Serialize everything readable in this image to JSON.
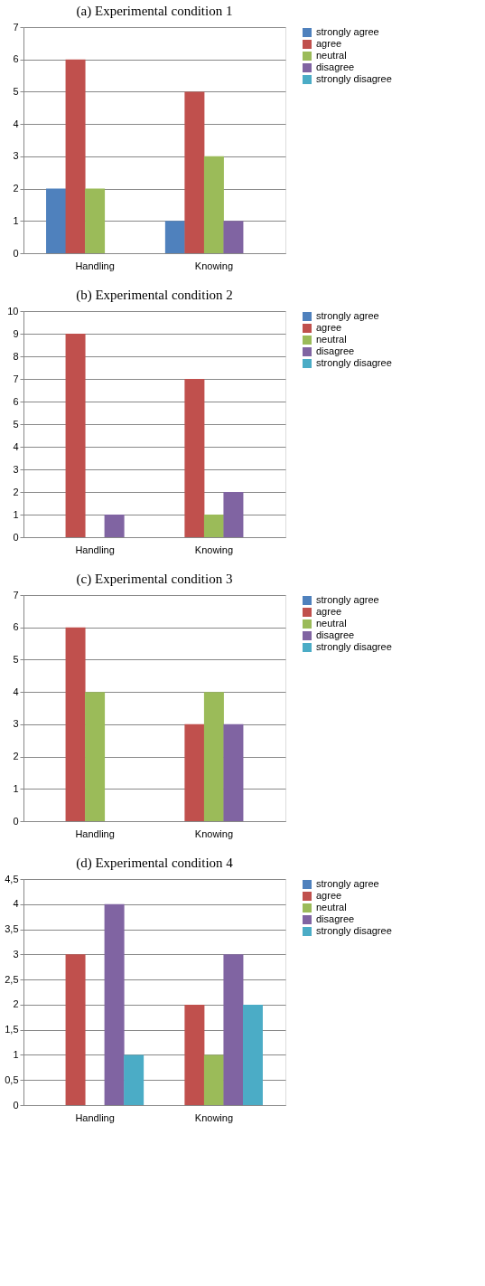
{
  "chart_data": [
    {
      "type": "bar",
      "title": "(a) Experimental condition 1",
      "categories": [
        "Handling",
        "Knowing"
      ],
      "ylim": [
        0,
        7
      ],
      "yticks": [
        0,
        1,
        2,
        3,
        4,
        5,
        6,
        7
      ],
      "grid": "y",
      "legend": "right",
      "series": [
        {
          "name": "strongly agree",
          "color": "#4f81bd",
          "values": [
            2,
            1
          ]
        },
        {
          "name": "agree",
          "color": "#c0504d",
          "values": [
            6,
            5
          ]
        },
        {
          "name": "neutral",
          "color": "#9bbb59",
          "values": [
            2,
            3
          ]
        },
        {
          "name": "disagree",
          "color": "#8064a2",
          "values": [
            0,
            1
          ]
        },
        {
          "name": "strongly disagree",
          "color": "#4bacc6",
          "values": [
            0,
            0
          ]
        }
      ]
    },
    {
      "type": "bar",
      "title": "(b) Experimental condition 2",
      "categories": [
        "Handling",
        "Knowing"
      ],
      "ylim": [
        0,
        10
      ],
      "yticks": [
        0,
        1,
        2,
        3,
        4,
        5,
        6,
        7,
        8,
        9,
        10
      ],
      "grid": "y",
      "legend": "right",
      "series": [
        {
          "name": "strongly agree",
          "color": "#4f81bd",
          "values": [
            0,
            0
          ]
        },
        {
          "name": "agree",
          "color": "#c0504d",
          "values": [
            9,
            7
          ]
        },
        {
          "name": "neutral",
          "color": "#9bbb59",
          "values": [
            0,
            1
          ]
        },
        {
          "name": "disagree",
          "color": "#8064a2",
          "values": [
            1,
            2
          ]
        },
        {
          "name": "strongly disagree",
          "color": "#4bacc6",
          "values": [
            0,
            0
          ]
        }
      ]
    },
    {
      "type": "bar",
      "title": "(c) Experimental condition 3",
      "categories": [
        "Handling",
        "Knowing"
      ],
      "ylim": [
        0,
        7
      ],
      "yticks": [
        0,
        1,
        2,
        3,
        4,
        5,
        6,
        7
      ],
      "grid": "y",
      "legend": "right",
      "series": [
        {
          "name": "strongly agree",
          "color": "#4f81bd",
          "values": [
            0,
            0
          ]
        },
        {
          "name": "agree",
          "color": "#c0504d",
          "values": [
            6,
            3
          ]
        },
        {
          "name": "neutral",
          "color": "#9bbb59",
          "values": [
            4,
            4
          ]
        },
        {
          "name": "disagree",
          "color": "#8064a2",
          "values": [
            0,
            3
          ]
        },
        {
          "name": "strongly disagree",
          "color": "#4bacc6",
          "values": [
            0,
            0
          ]
        }
      ]
    },
    {
      "type": "bar",
      "title": "(d) Experimental condition 4",
      "categories": [
        "Handling",
        "Knowing"
      ],
      "ylim": [
        0,
        4.5
      ],
      "yticks": [
        0,
        {
          "value": 0.5,
          "label": "0,5"
        },
        1,
        {
          "value": 1.5,
          "label": "1,5"
        },
        2,
        {
          "value": 2.5,
          "label": "2,5"
        },
        3,
        {
          "value": 3.5,
          "label": "3,5"
        },
        4,
        {
          "value": 4.5,
          "label": "4,5"
        }
      ],
      "grid": "y",
      "legend": "right",
      "series": [
        {
          "name": "strongly agree",
          "color": "#4f81bd",
          "values": [
            0,
            0
          ]
        },
        {
          "name": "agree",
          "color": "#c0504d",
          "values": [
            3,
            2
          ]
        },
        {
          "name": "neutral",
          "color": "#9bbb59",
          "values": [
            0,
            1
          ]
        },
        {
          "name": "disagree",
          "color": "#8064a2",
          "values": [
            4,
            3
          ]
        },
        {
          "name": "strongly disagree",
          "color": "#4bacc6",
          "values": [
            1,
            2
          ]
        }
      ]
    }
  ]
}
